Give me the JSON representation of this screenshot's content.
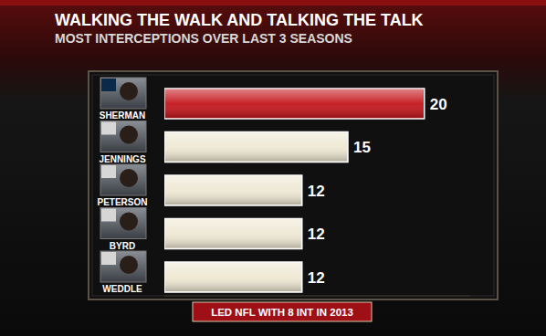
{
  "chart_data": {
    "type": "bar",
    "orientation": "horizontal",
    "title": "WALKING THE WALK AND TALKING THE TALK",
    "subtitle": "MOST INTERCEPTIONS OVER LAST 3 SEASONS",
    "categories": [
      "SHERMAN",
      "JENNINGS",
      "PETERSON",
      "BYRD",
      "WEDDLE"
    ],
    "values": [
      20,
      15,
      12,
      12,
      12
    ],
    "colors": [
      "#c4161c",
      "#eee8d3",
      "#eee8d3",
      "#eee8d3",
      "#eee8d3"
    ],
    "xlim": [
      3,
      23
    ],
    "data_labels": true,
    "tick_labels": false,
    "annotation": "LED NFL WITH 8 INT IN 2013"
  }
}
